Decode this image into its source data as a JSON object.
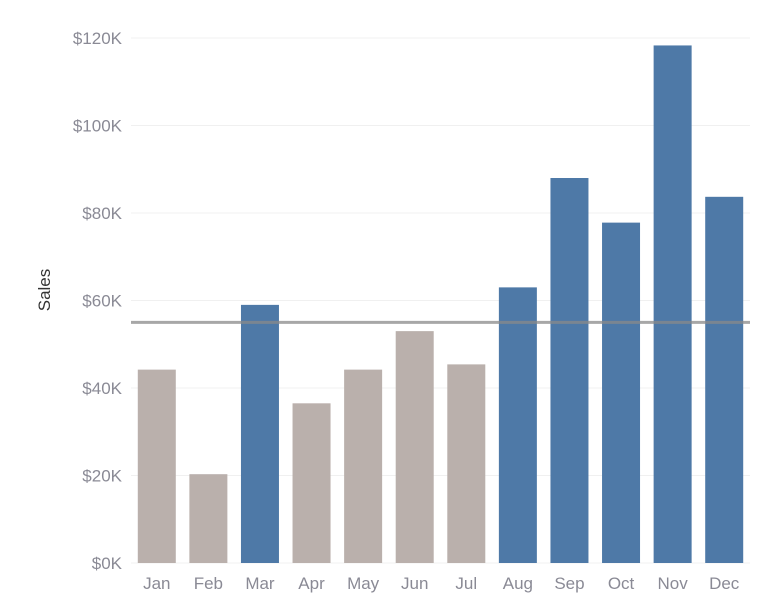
{
  "chart_data": {
    "type": "bar",
    "title": "",
    "xlabel": "",
    "ylabel": "Sales",
    "categories": [
      "Jan",
      "Feb",
      "Mar",
      "Apr",
      "May",
      "Jun",
      "Jul",
      "Aug",
      "Sep",
      "Oct",
      "Nov",
      "Dec"
    ],
    "values": [
      44200,
      20300,
      59000,
      36500,
      44200,
      53000,
      45400,
      63000,
      88000,
      77800,
      118300,
      83700
    ],
    "ylim": [
      0,
      120000
    ],
    "yticks": [
      0,
      20000,
      40000,
      60000,
      80000,
      100000,
      120000
    ],
    "ytick_labels": [
      "$0K",
      "$20K",
      "$40K",
      "$60K",
      "$80K",
      "$100K",
      "$120K"
    ],
    "reference_line": {
      "value": 55000
    },
    "highlight_rule": "value above reference line",
    "colors": {
      "above": "#4e79a7",
      "below": "#bab0ac",
      "reference": "#8a8a8a"
    },
    "grid": true,
    "legend": "none"
  }
}
